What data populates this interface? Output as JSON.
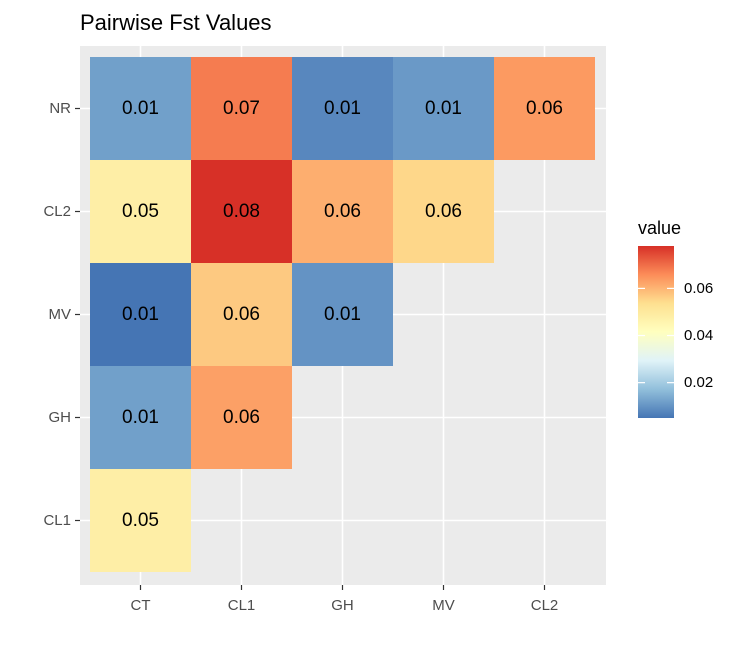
{
  "chart_data": {
    "type": "heatmap",
    "title": "Pairwise Fst Values",
    "xlabel": "",
    "ylabel": "",
    "x_categories": [
      "CT",
      "CL1",
      "GH",
      "MV",
      "CL2"
    ],
    "y_categories": [
      "CL1",
      "GH",
      "MV",
      "CL2",
      "NR"
    ],
    "cells": [
      {
        "x": "CT",
        "y": "NR",
        "value": 0.012,
        "label": "0.01"
      },
      {
        "x": "CL1",
        "y": "NR",
        "value": 0.068,
        "label": "0.07"
      },
      {
        "x": "GH",
        "y": "NR",
        "value": 0.008,
        "label": "0.01"
      },
      {
        "x": "MV",
        "y": "NR",
        "value": 0.011,
        "label": "0.01"
      },
      {
        "x": "CL2",
        "y": "NR",
        "value": 0.064,
        "label": "0.06"
      },
      {
        "x": "CT",
        "y": "CL2",
        "value": 0.048,
        "label": "0.05"
      },
      {
        "x": "CL1",
        "y": "CL2",
        "value": 0.078,
        "label": "0.08"
      },
      {
        "x": "GH",
        "y": "CL2",
        "value": 0.061,
        "label": "0.06"
      },
      {
        "x": "MV",
        "y": "CL2",
        "value": 0.055,
        "label": "0.06"
      },
      {
        "x": "CT",
        "y": "MV",
        "value": 0.005,
        "label": "0.01"
      },
      {
        "x": "CL1",
        "y": "MV",
        "value": 0.057,
        "label": "0.06"
      },
      {
        "x": "GH",
        "y": "MV",
        "value": 0.01,
        "label": "0.01"
      },
      {
        "x": "CT",
        "y": "GH",
        "value": 0.012,
        "label": "0.01"
      },
      {
        "x": "CL1",
        "y": "GH",
        "value": 0.063,
        "label": "0.06"
      },
      {
        "x": "CT",
        "y": "CL1",
        "value": 0.048,
        "label": "0.05"
      }
    ],
    "grid": true,
    "legend": {
      "title": "value",
      "placement": "right",
      "range": [
        0.005,
        0.078
      ],
      "ticks": [
        0.02,
        0.04,
        0.06
      ],
      "tick_labels": [
        "0.02",
        "0.04",
        "0.06"
      ],
      "palette": [
        "#4575b4",
        "#91bfdb",
        "#e0f3f8",
        "#ffffbf",
        "#fee090",
        "#fc8d59",
        "#d73027"
      ]
    }
  }
}
